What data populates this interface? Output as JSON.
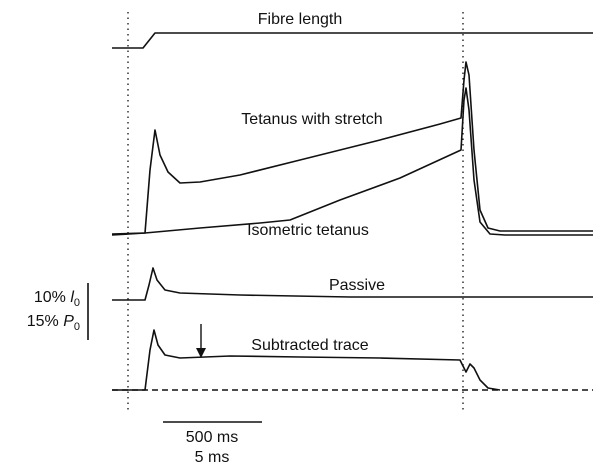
{
  "traces": {
    "fibre_length": {
      "label": "Fibre length"
    },
    "tetanus_with_stretch": {
      "label": "Tetanus with stretch"
    },
    "isometric_tetanus": {
      "label": "Isometric tetanus"
    },
    "passive": {
      "label": "Passive"
    },
    "subtracted": {
      "label": "Subtracted trace"
    }
  },
  "scale_bars": {
    "vertical": {
      "length_label": {
        "prefix": "10%",
        "symbol": "l",
        "subscript": "0"
      },
      "force_label": {
        "prefix": "15%",
        "symbol": "P",
        "subscript": "0"
      }
    },
    "horizontal": {
      "labels": [
        "500 ms",
        "5 ms"
      ]
    }
  }
}
